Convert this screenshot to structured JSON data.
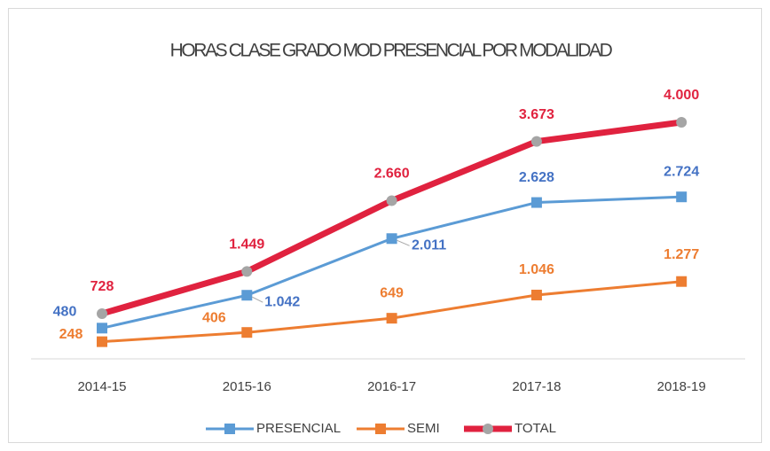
{
  "chart_data": {
    "type": "line",
    "title": "HORAS CLASE GRADO MOD PRESENCIAL POR MODALIDAD",
    "categories": [
      "2014-15",
      "2015-16",
      "2016-17",
      "2017-18",
      "2018-19"
    ],
    "ylim": [
      0,
      4500
    ],
    "series": [
      {
        "name": "PRESENCIAL",
        "color": "#5b9bd5",
        "label_color": "#4472c4",
        "marker": "square",
        "marker_color": "#5b9bd5",
        "line_width": 3,
        "values": [
          480,
          1042,
          2011,
          2628,
          2724
        ],
        "value_labels": [
          "480",
          "1.042",
          "2.011",
          "2.628",
          "2.724"
        ]
      },
      {
        "name": "SEMI",
        "color": "#ed7d31",
        "label_color": "#ed7d31",
        "marker": "square",
        "marker_color": "#ed7d31",
        "line_width": 3,
        "values": [
          248,
          406,
          649,
          1046,
          1277
        ],
        "value_labels": [
          "248",
          "406",
          "649",
          "1.046",
          "1.277"
        ]
      },
      {
        "name": "TOTAL",
        "color": "#e0223f",
        "label_color": "#e0223f",
        "marker": "circle",
        "marker_color": "#a5a5a5",
        "line_width": 7,
        "values": [
          728,
          1449,
          2660,
          3673,
          4000
        ],
        "value_labels": [
          "728",
          "1.449",
          "2.660",
          "3.673",
          "4.000"
        ]
      }
    ],
    "legend": "bottom"
  }
}
